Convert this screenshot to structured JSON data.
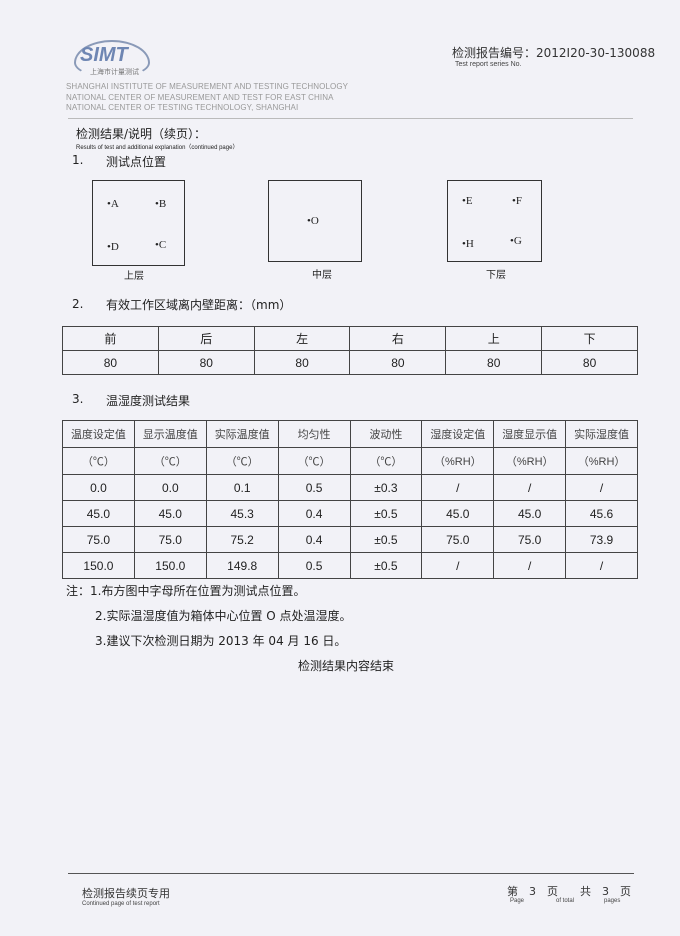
{
  "header": {
    "logo_text": "SIMT",
    "logo_sub": "上海市计量测试",
    "institute_lines": [
      "SHANGHAI INSTITUTE OF MEASUREMENT AND TESTING TECHNOLOGY",
      "NATIONAL CENTER OF MEASUREMENT AND TEST FOR EAST CHINA",
      "NATIONAL CENTER OF TESTING TECHNOLOGY, SHANGHAI"
    ],
    "report_no": "检测报告编号：2012I20-30-130088",
    "report_no_en": "Test report series No."
  },
  "title": "检测结果/说明（续页）：",
  "title_en": "Results of test and additional explanation（continued page）",
  "section1": {
    "num": "1.",
    "title": "测试点位置",
    "layers": [
      {
        "label": "上层",
        "points": [
          "A",
          "B",
          "D",
          "C"
        ]
      },
      {
        "label": "中层",
        "points": [
          "O"
        ]
      },
      {
        "label": "下层",
        "points": [
          "E",
          "F",
          "H",
          "G"
        ]
      }
    ]
  },
  "section2": {
    "num": "2.",
    "title": "有效工作区域离内壁距离：（mm）",
    "headers": [
      "前",
      "后",
      "左",
      "右",
      "上",
      "下"
    ],
    "values": [
      "80",
      "80",
      "80",
      "80",
      "80",
      "80"
    ]
  },
  "section3": {
    "num": "3.",
    "title": "温湿度测试结果",
    "headers": [
      "温度设定值",
      "显示温度值",
      "实际温度值",
      "均匀性",
      "波动性",
      "湿度设定值",
      "湿度显示值",
      "实际湿度值"
    ],
    "units": [
      "（℃）",
      "（℃）",
      "（℃）",
      "（℃）",
      "（℃）",
      "（%RH）",
      "（%RH）",
      "（%RH）"
    ],
    "rows": [
      [
        "0.0",
        "0.0",
        "0.1",
        "0.5",
        "±0.3",
        "/",
        "/",
        "/"
      ],
      [
        "45.0",
        "45.0",
        "45.3",
        "0.4",
        "±0.5",
        "45.0",
        "45.0",
        "45.6"
      ],
      [
        "75.0",
        "75.0",
        "75.2",
        "0.4",
        "±0.5",
        "75.0",
        "75.0",
        "73.9"
      ],
      [
        "150.0",
        "150.0",
        "149.8",
        "0.5",
        "±0.5",
        "/",
        "/",
        "/"
      ]
    ]
  },
  "notes": [
    "注：1.布方图中字母所在位置为测试点位置。",
    "2.实际温湿度值为箱体中心位置 O 点处温湿度。",
    "3.建议下次检测日期为 2013 年 04 月 16 日。"
  ],
  "end_text": "检测结果内容结束",
  "footer": {
    "label": "检测报告续页专用",
    "label_en": "Continued page of test report",
    "page": "第　3　页　　共　3　页",
    "page_en": [
      "Page",
      "of total",
      "pages"
    ]
  }
}
